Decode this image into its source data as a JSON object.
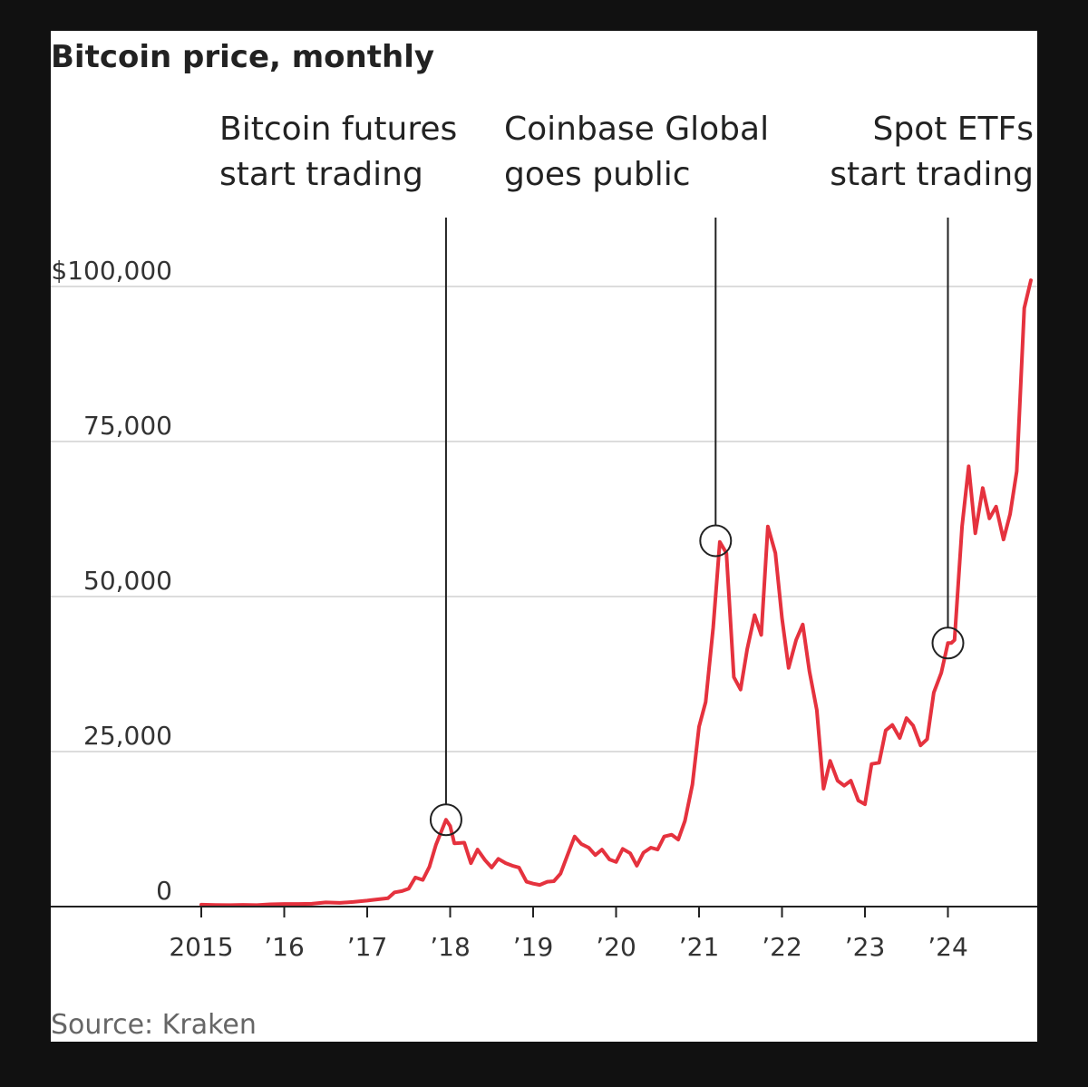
{
  "colors": {
    "line": "#e5323e",
    "grid": "#dcdcdc",
    "axis": "#222222",
    "background": "#ffffff",
    "frame": "#111111"
  },
  "source": "Source: Kraken",
  "chart_data": {
    "type": "line",
    "title": "Bitcoin price, monthly",
    "xlabel": "",
    "ylabel": "",
    "ylim": [
      0,
      100000
    ],
    "grid": true,
    "y_ticks": [
      {
        "value": 0,
        "label": "0"
      },
      {
        "value": 25000,
        "label": "25,000"
      },
      {
        "value": 50000,
        "label": "50,000"
      },
      {
        "value": 75000,
        "label": "75,000"
      },
      {
        "value": 100000,
        "label": "$100,000"
      }
    ],
    "x_ticks": [
      {
        "value": 2015,
        "label": "2015"
      },
      {
        "value": 2016,
        "label": "’16"
      },
      {
        "value": 2017,
        "label": "’17"
      },
      {
        "value": 2018,
        "label": "’18"
      },
      {
        "value": 2019,
        "label": "’19"
      },
      {
        "value": 2020,
        "label": "’20"
      },
      {
        "value": 2021,
        "label": "’21"
      },
      {
        "value": 2022,
        "label": "’22"
      },
      {
        "value": 2023,
        "label": "’23"
      },
      {
        "value": 2024,
        "label": "’24"
      }
    ],
    "annotations": [
      {
        "x": 2017.95,
        "y": 14000,
        "lines": [
          "Bitcoin futures",
          "start trading"
        ],
        "align": "left"
      },
      {
        "x": 2021.2,
        "y": 59000,
        "lines": [
          "Coinbase Global",
          "goes public"
        ],
        "align": "left"
      },
      {
        "x": 2024.0,
        "y": 42500,
        "lines": [
          "Spot ETFs",
          "start trading"
        ],
        "align": "right"
      }
    ],
    "series": [
      {
        "values": [
          [
            2015.0,
            300
          ],
          [
            2015.17,
            260
          ],
          [
            2015.33,
            240
          ],
          [
            2015.5,
            280
          ],
          [
            2015.67,
            240
          ],
          [
            2015.83,
            360
          ],
          [
            2016.0,
            430
          ],
          [
            2016.17,
            420
          ],
          [
            2016.33,
            450
          ],
          [
            2016.5,
            670
          ],
          [
            2016.67,
            600
          ],
          [
            2016.83,
            740
          ],
          [
            2017.0,
            960
          ],
          [
            2017.08,
            1100
          ],
          [
            2017.25,
            1350
          ],
          [
            2017.33,
            2300
          ],
          [
            2017.42,
            2500
          ],
          [
            2017.5,
            2900
          ],
          [
            2017.58,
            4700
          ],
          [
            2017.67,
            4300
          ],
          [
            2017.75,
            6400
          ],
          [
            2017.83,
            10000
          ],
          [
            2017.95,
            14000
          ],
          [
            2018.0,
            13000
          ],
          [
            2018.05,
            10200
          ],
          [
            2018.17,
            10300
          ],
          [
            2018.25,
            7000
          ],
          [
            2018.33,
            9200
          ],
          [
            2018.42,
            7500
          ],
          [
            2018.5,
            6300
          ],
          [
            2018.58,
            7700
          ],
          [
            2018.67,
            7000
          ],
          [
            2018.75,
            6600
          ],
          [
            2018.83,
            6300
          ],
          [
            2018.92,
            4000
          ],
          [
            2019.0,
            3700
          ],
          [
            2019.08,
            3500
          ],
          [
            2019.17,
            4000
          ],
          [
            2019.25,
            4100
          ],
          [
            2019.33,
            5300
          ],
          [
            2019.42,
            8500
          ],
          [
            2019.5,
            11300
          ],
          [
            2019.58,
            10100
          ],
          [
            2019.67,
            9500
          ],
          [
            2019.75,
            8300
          ],
          [
            2019.83,
            9200
          ],
          [
            2019.92,
            7600
          ],
          [
            2020.0,
            7200
          ],
          [
            2020.08,
            9300
          ],
          [
            2020.17,
            8600
          ],
          [
            2020.25,
            6600
          ],
          [
            2020.33,
            8700
          ],
          [
            2020.42,
            9500
          ],
          [
            2020.5,
            9200
          ],
          [
            2020.58,
            11300
          ],
          [
            2020.67,
            11600
          ],
          [
            2020.75,
            10800
          ],
          [
            2020.83,
            13800
          ],
          [
            2020.92,
            19700
          ],
          [
            2021.0,
            29000
          ],
          [
            2021.08,
            33000
          ],
          [
            2021.17,
            45000
          ],
          [
            2021.25,
            58800
          ],
          [
            2021.33,
            57000
          ],
          [
            2021.42,
            37000
          ],
          [
            2021.5,
            35000
          ],
          [
            2021.58,
            41500
          ],
          [
            2021.67,
            47000
          ],
          [
            2021.75,
            43800
          ],
          [
            2021.83,
            61300
          ],
          [
            2021.92,
            57000
          ],
          [
            2022.0,
            46500
          ],
          [
            2022.08,
            38500
          ],
          [
            2022.17,
            43000
          ],
          [
            2022.25,
            45500
          ],
          [
            2022.33,
            38000
          ],
          [
            2022.42,
            31700
          ],
          [
            2022.5,
            19000
          ],
          [
            2022.58,
            23500
          ],
          [
            2022.67,
            20300
          ],
          [
            2022.75,
            19500
          ],
          [
            2022.83,
            20300
          ],
          [
            2022.92,
            17100
          ],
          [
            2023.0,
            16500
          ],
          [
            2023.08,
            23000
          ],
          [
            2023.17,
            23200
          ],
          [
            2023.25,
            28400
          ],
          [
            2023.33,
            29300
          ],
          [
            2023.42,
            27200
          ],
          [
            2023.5,
            30400
          ],
          [
            2023.58,
            29200
          ],
          [
            2023.67,
            26000
          ],
          [
            2023.75,
            27000
          ],
          [
            2023.83,
            34500
          ],
          [
            2023.92,
            37700
          ],
          [
            2024.0,
            42500
          ],
          [
            2024.04,
            42500
          ],
          [
            2024.08,
            43000
          ],
          [
            2024.17,
            61300
          ],
          [
            2024.25,
            71000
          ],
          [
            2024.33,
            60200
          ],
          [
            2024.42,
            67500
          ],
          [
            2024.5,
            62600
          ],
          [
            2024.58,
            64500
          ],
          [
            2024.67,
            59200
          ],
          [
            2024.75,
            63300
          ],
          [
            2024.83,
            70200
          ],
          [
            2024.92,
            96500
          ],
          [
            2025.0,
            101000
          ]
        ]
      }
    ]
  }
}
